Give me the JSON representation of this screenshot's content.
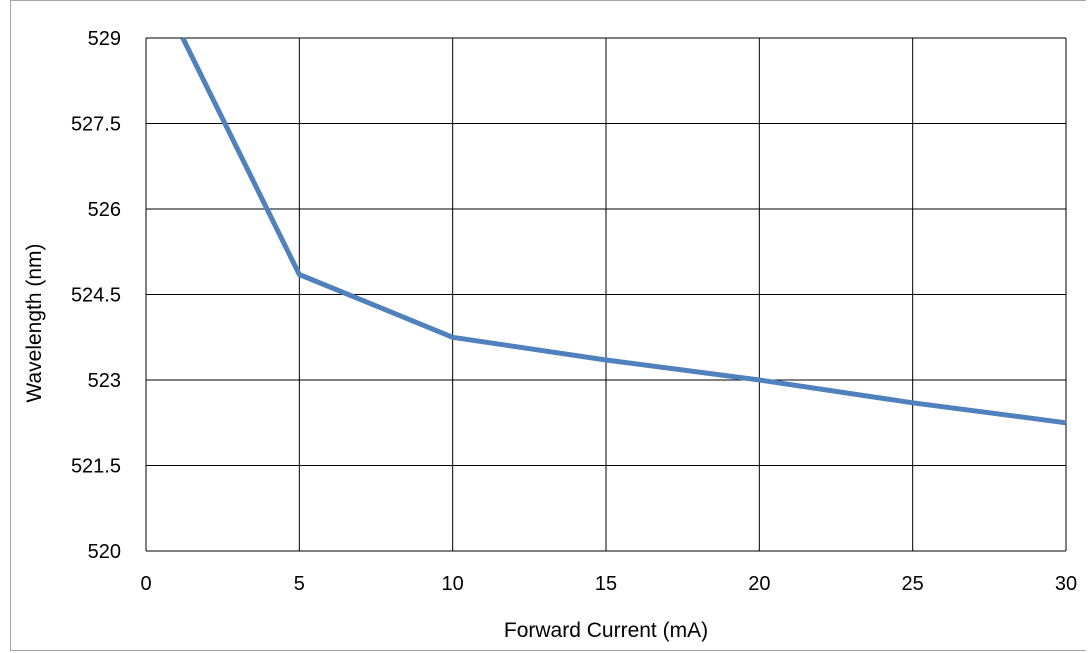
{
  "chart_data": {
    "type": "line",
    "title": "",
    "xlabel": "Forward Current (mA)",
    "ylabel": "Wavelength (nm)",
    "xlim": [
      0,
      30
    ],
    "ylim": [
      520,
      529
    ],
    "x_ticks": [
      "0",
      "5",
      "10",
      "15",
      "20",
      "25",
      "30"
    ],
    "y_ticks": [
      "520",
      "521.5",
      "523",
      "524.5",
      "526",
      "527.5",
      "529"
    ],
    "grid": true,
    "legend": "none",
    "series": [
      {
        "color": "#4f81bd",
        "x": [
          1.2,
          5,
          10,
          15,
          20,
          25,
          30
        ],
        "y": [
          529.0,
          524.85,
          523.75,
          523.35,
          523.0,
          522.6,
          522.25
        ]
      }
    ]
  }
}
